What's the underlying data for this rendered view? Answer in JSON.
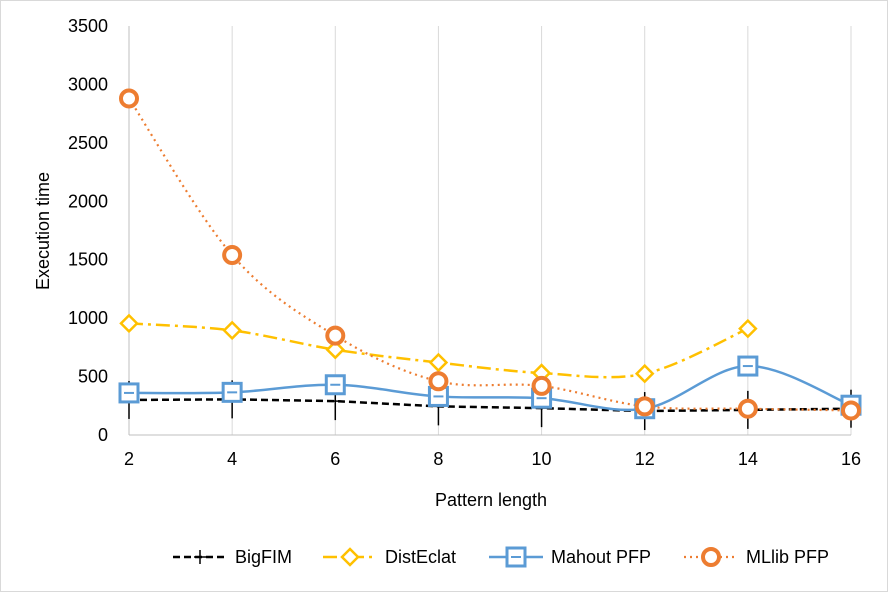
{
  "chart_data": {
    "type": "line",
    "title": "",
    "xlabel": "Pattern length",
    "ylabel": "Execution time",
    "x": [
      2,
      4,
      6,
      8,
      10,
      12,
      14,
      16
    ],
    "xticks": [
      "2",
      "4",
      "6",
      "8",
      "10",
      "12",
      "14",
      "16"
    ],
    "ylim": [
      0,
      3500
    ],
    "yticks": [
      "0",
      "500",
      "1000",
      "1500",
      "2000",
      "2500",
      "3000",
      "3500"
    ],
    "grid": "vertical",
    "legend_position": "bottom",
    "series": [
      {
        "name": "BigFIM",
        "color": "#000000",
        "marker": "plus",
        "line": "dashed",
        "values": [
          300,
          305,
          290,
          245,
          230,
          205,
          215,
          225
        ]
      },
      {
        "name": "DistEclat",
        "color": "#ffc000",
        "marker": "diamond",
        "line": "dashdot",
        "values": [
          955,
          895,
          730,
          620,
          530,
          525,
          910,
          null
        ]
      },
      {
        "name": "Mahout PFP",
        "color": "#5b9bd5",
        "marker": "square",
        "line": "solid-smooth",
        "values": [
          360,
          365,
          430,
          330,
          315,
          225,
          590,
          255
        ]
      },
      {
        "name": "MLlib PFP",
        "color": "#ed7d31",
        "marker": "circle",
        "line": "dotted",
        "values": [
          2880,
          1540,
          850,
          460,
          420,
          245,
          225,
          210
        ]
      }
    ]
  }
}
